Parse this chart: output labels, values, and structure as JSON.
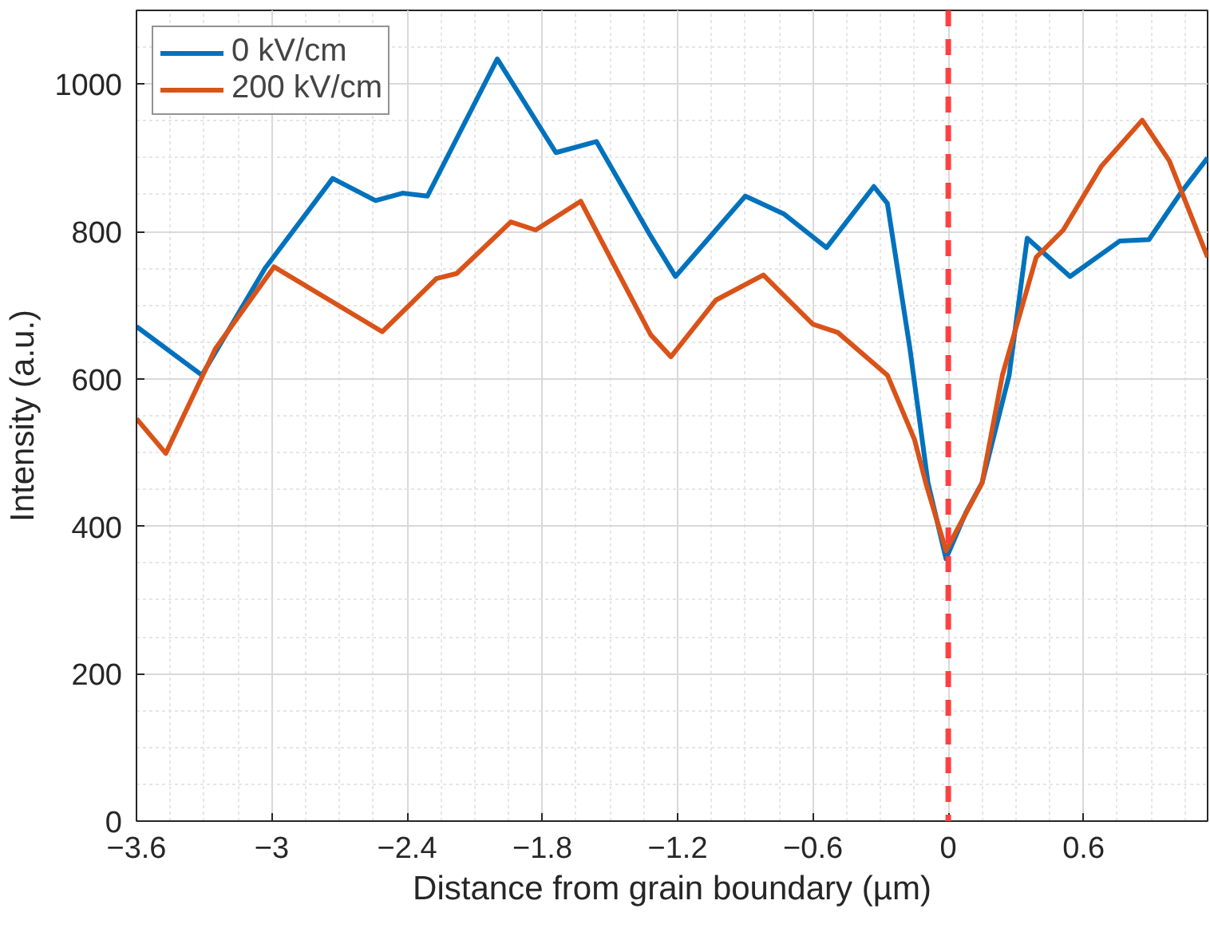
{
  "chart_data": {
    "type": "line",
    "xlabel": "Distance from grain boundary (µm)",
    "ylabel": "Intensity (a.u.)",
    "xlim": [
      -3.6,
      1.15
    ],
    "xticks": [
      -3.6,
      -3,
      -2.4,
      -1.8,
      -1.2,
      -0.6,
      0,
      0.6
    ],
    "ylim": [
      0,
      1100
    ],
    "yticks": [
      0,
      200,
      400,
      600,
      800,
      1000
    ],
    "grid": true,
    "legend": "top left",
    "line_style": "solid",
    "marker": "none",
    "ref_lines": [
      {
        "axis": "x",
        "value": 0,
        "color": "#ff4040",
        "line_style": "dashed"
      }
    ],
    "series": [
      {
        "name": "0 kV/cm",
        "color": "#0072bd",
        "x": [
          -3.6,
          -3.31,
          -3.03,
          -2.73,
          -2.54,
          -2.42,
          -2.31,
          -2.0,
          -1.74,
          -1.56,
          -1.32,
          -1.21,
          -0.9,
          -0.73,
          -0.54,
          -0.33,
          -0.27,
          -0.17,
          -0.09,
          -0.01,
          0.08,
          0.15,
          0.27,
          0.35,
          0.54,
          0.76,
          0.89,
          1.03,
          1.15
        ],
        "values": [
          671,
          605,
          750,
          872,
          842,
          852,
          848,
          1034,
          907,
          922,
          794,
          739,
          848,
          824,
          778,
          861,
          838,
          641,
          459,
          356,
          420,
          459,
          605,
          791,
          739,
          787,
          789,
          852,
          900
        ]
      },
      {
        "name": "200 kV/cm",
        "color": "#d95319",
        "x": [
          -3.6,
          -3.47,
          -3.25,
          -2.99,
          -2.51,
          -2.27,
          -2.18,
          -1.94,
          -1.83,
          -1.63,
          -1.32,
          -1.23,
          -1.03,
          -0.82,
          -0.6,
          -0.49,
          -0.27,
          -0.15,
          -0.1,
          -0.01,
          0.15,
          0.24,
          0.39,
          0.51,
          0.68,
          0.86,
          0.98,
          1.15
        ],
        "values": [
          546,
          499,
          641,
          752,
          664,
          736,
          743,
          813,
          802,
          841,
          660,
          630,
          707,
          741,
          674,
          663,
          605,
          518,
          459,
          367,
          459,
          605,
          765,
          802,
          889,
          951,
          896,
          765
        ]
      }
    ]
  }
}
